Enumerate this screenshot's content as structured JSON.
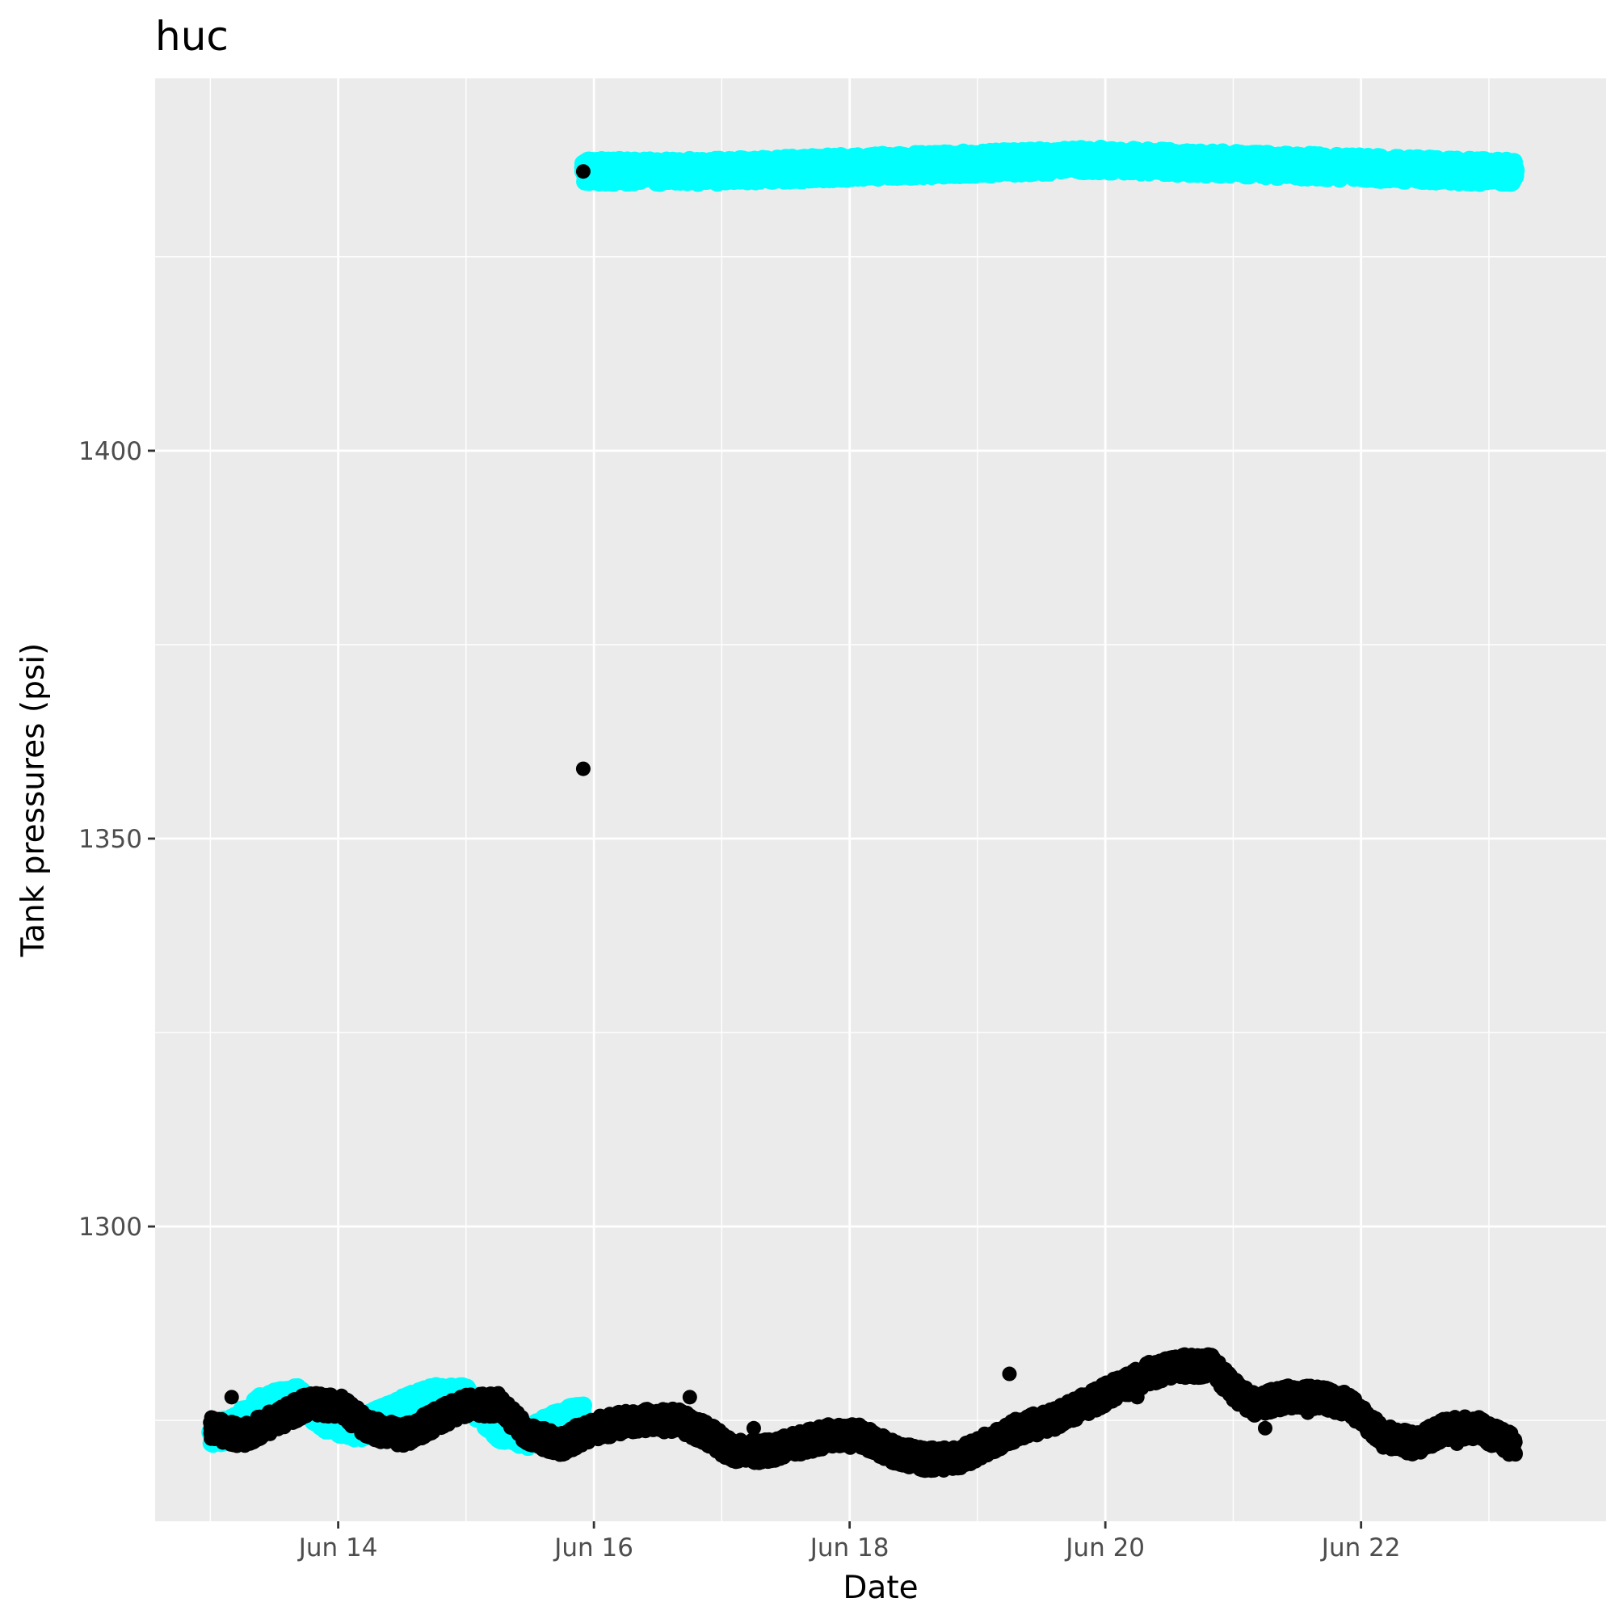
{
  "chart_data": {
    "type": "scatter",
    "title": "huc",
    "xlabel": "Date",
    "ylabel": "Tank pressures (psi)",
    "x_ticks": [
      "Jun 14",
      "Jun 16",
      "Jun 18",
      "Jun 20",
      "Jun 22"
    ],
    "y_ticks": [
      "1300",
      "1350",
      "1400"
    ],
    "y_tick_values": [
      1300,
      1350,
      1400
    ],
    "xlim": [
      "Jun 12 13:38",
      "Jun 23 22:00"
    ],
    "ylim": [
      1262,
      1448
    ],
    "grid": true,
    "legend": "none",
    "background": "#ebebeb",
    "series": [
      {
        "color": "#00ffff",
        "points_description": "cyan points",
        "segments": [
          {
            "x_start": "Jun 13 00:00",
            "x_end": "Jun 15 22:00",
            "profile": [
              [
                0,
                1273
              ],
              [
                4,
                1274
              ],
              [
                10,
                1277
              ],
              [
                16,
                1278
              ],
              [
                22,
                1275
              ],
              [
                28,
                1274
              ],
              [
                34,
                1276
              ],
              [
                42,
                1278
              ],
              [
                48,
                1278
              ],
              [
                54,
                1274
              ],
              [
                60,
                1273
              ],
              [
                66,
                1275
              ],
              [
                72,
                1276
              ],
              [
                80,
                1276
              ],
              [
                88,
                1275
              ],
              [
                94,
                1273
              ]
            ]
          },
          {
            "x_start": "Jun 15 22:00",
            "x_end": "Jun 23 05:00",
            "profile": [
              [
                0,
                1436
              ],
              [
                24,
                1436
              ],
              [
                48,
                1436.5
              ],
              [
                72,
                1437
              ],
              [
                96,
                1437.5
              ],
              [
                120,
                1437
              ],
              [
                144,
                1436.5
              ],
              [
                168,
                1436
              ],
              [
                175,
                1436
              ]
            ]
          }
        ]
      },
      {
        "color": "#000000",
        "points_description": "black points",
        "segments": [
          {
            "x_start": "Jun 13 00:00",
            "x_end": "Jun 23 05:00",
            "profile": [
              [
                0,
                1274
              ],
              [
                6,
                1273
              ],
              [
                12,
                1275
              ],
              [
                18,
                1277
              ],
              [
                24,
                1277
              ],
              [
                30,
                1274
              ],
              [
                36,
                1273
              ],
              [
                42,
                1275
              ],
              [
                48,
                1277
              ],
              [
                54,
                1277
              ],
              [
                60,
                1273
              ],
              [
                66,
                1272
              ],
              [
                72,
                1274
              ],
              [
                80,
                1275
              ],
              [
                88,
                1275
              ],
              [
                94,
                1273
              ],
              [
                98,
                1271
              ],
              [
                104,
                1271
              ],
              [
                110,
                1272
              ],
              [
                116,
                1273
              ],
              [
                122,
                1273
              ],
              [
                128,
                1271
              ],
              [
                134,
                1270
              ],
              [
                140,
                1270
              ],
              [
                146,
                1272
              ],
              [
                152,
                1274
              ],
              [
                158,
                1275
              ],
              [
                164,
                1277
              ],
              [
                170,
                1279
              ],
              [
                176,
                1281
              ],
              [
                182,
                1282
              ],
              [
                188,
                1282
              ],
              [
                192,
                1279
              ],
              [
                196,
                1277
              ],
              [
                202,
                1278
              ],
              [
                208,
                1278
              ],
              [
                214,
                1277
              ],
              [
                220,
                1273
              ],
              [
                226,
                1272
              ],
              [
                232,
                1274
              ],
              [
                238,
                1274
              ],
              [
                244,
                1272
              ],
              [
                250,
                1270
              ],
              [
                256,
                1269
              ],
              [
                262,
                1271
              ],
              [
                268,
                1271
              ],
              [
                274,
                1271
              ],
              [
                280,
                1270
              ],
              [
                286,
                1267
              ],
              [
                290,
                1266
              ],
              [
                294,
                1268
              ],
              [
                300,
                1269
              ],
              [
                306,
                1269
              ],
              [
                312,
                1269
              ],
              [
                318,
                1268
              ],
              [
                324,
                1268
              ],
              [
                341,
                1268
              ]
            ]
          }
        ],
        "outliers": [
          {
            "x": "Jun 15 22:00",
            "y": 1436
          },
          {
            "x": "Jun 15 22:00",
            "y": 1359
          },
          {
            "x": "Jun 13 04:00",
            "y": 1278
          },
          {
            "x": "Jun 16 18:00",
            "y": 1278
          },
          {
            "x": "Jun 17 06:00",
            "y": 1274
          },
          {
            "x": "Jun 19 06:00",
            "y": 1281
          },
          {
            "x": "Jun 20 06:00",
            "y": 1278
          },
          {
            "x": "Jun 21 06:00",
            "y": 1274
          },
          {
            "x": "Jun 21 14:00",
            "y": 1276
          },
          {
            "x": "Jun 22 18:00",
            "y": 1272
          }
        ]
      }
    ]
  }
}
